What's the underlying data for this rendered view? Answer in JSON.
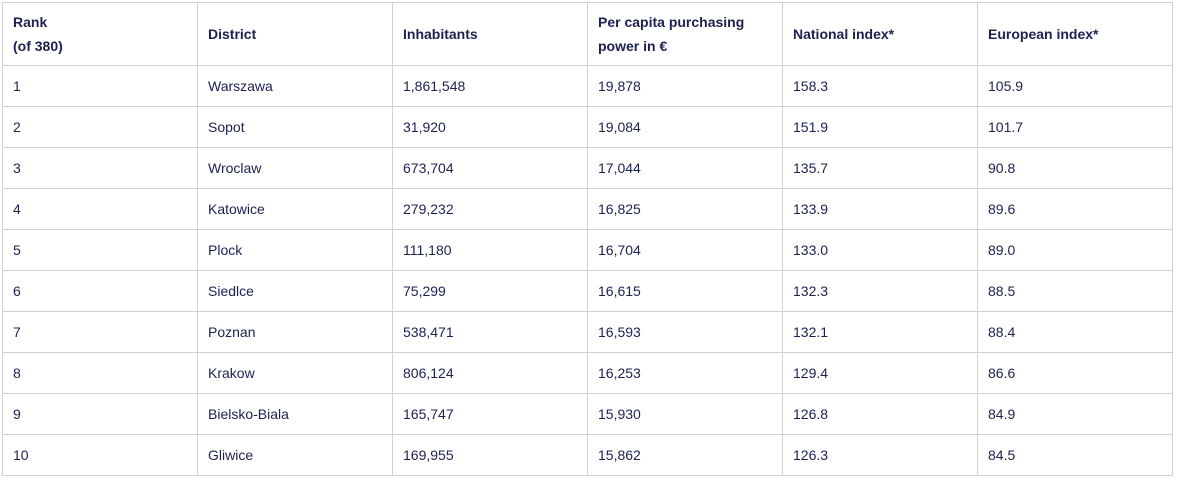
{
  "table": {
    "header": [
      "Rank\n(of 380)",
      "District",
      "Inhabitants",
      "Per capita purchasing power in €",
      "National index*",
      "European index*"
    ],
    "rows": [
      [
        "1",
        "Warszawa",
        "1,861,548",
        "19,878",
        "158.3",
        "105.9"
      ],
      [
        "2",
        "Sopot",
        "31,920",
        "19,084",
        "151.9",
        "101.7"
      ],
      [
        "3",
        "Wroclaw",
        "673,704",
        "17,044",
        "135.7",
        "90.8"
      ],
      [
        "4",
        "Katowice",
        "279,232",
        "16,825",
        "133.9",
        "89.6"
      ],
      [
        "5",
        "Plock",
        "111,180",
        "16,704",
        "133.0",
        "89.0"
      ],
      [
        "6",
        "Siedlce",
        "75,299",
        "16,615",
        "132.3",
        "88.5"
      ],
      [
        "7",
        "Poznan",
        "538,471",
        "16,593",
        "132.1",
        "88.4"
      ],
      [
        "8",
        "Krakow",
        "806,124",
        "16,253",
        "129.4",
        "86.6"
      ],
      [
        "9",
        "Bielsko-Biala",
        "165,747",
        "15,930",
        "126.8",
        "84.9"
      ],
      [
        "10",
        "Gliwice",
        "169,955",
        "15,862",
        "126.3",
        "84.5"
      ]
    ]
  }
}
